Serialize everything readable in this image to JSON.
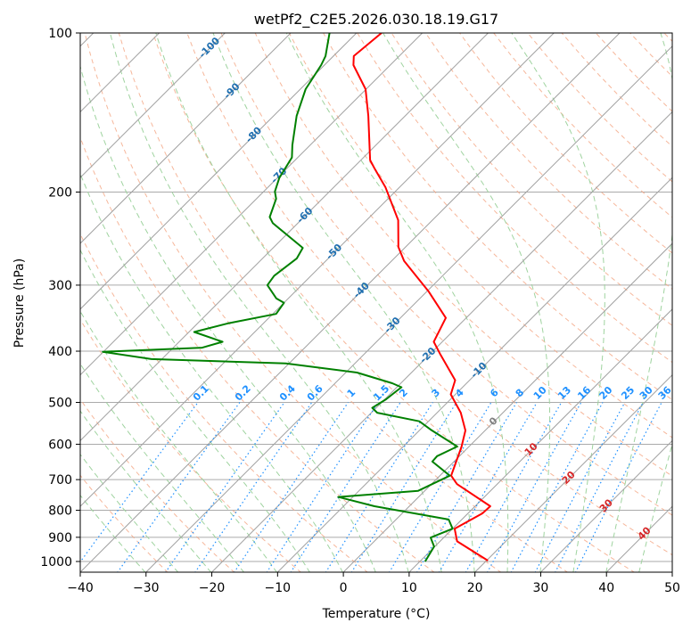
{
  "chart_data": {
    "type": "line",
    "subtype": "skew-t log-p",
    "title": "wetPf2_C2E5.2026.030.18.19.G17",
    "xlabel": "Temperature (°C)",
    "ylabel": "Pressure (hPa)",
    "xlim": [
      -40,
      50
    ],
    "ylim": [
      1048,
      100
    ],
    "x_ticks": [
      "−40",
      "−30",
      "−20",
      "−10",
      "0",
      "10",
      "20",
      "30",
      "40",
      "50"
    ],
    "y_ticks": [
      "100",
      "200",
      "300",
      "400",
      "500",
      "600",
      "700",
      "800",
      "900",
      "1000"
    ],
    "grid": true,
    "isotherm_labels": [
      "-100",
      "-90",
      "-80",
      "-70",
      "-60",
      "-50",
      "-40",
      "-30",
      "-20",
      "-10",
      "0",
      "10",
      "20",
      "30",
      "40"
    ],
    "mixing_ratio_labels": [
      "0.1",
      "0.2",
      "0.4",
      "0.6",
      "1",
      "1.5",
      "2",
      "3",
      "4",
      "6",
      "8",
      "10",
      "13",
      "16",
      "20",
      "25",
      "30",
      "36"
    ],
    "colors": {
      "temperature": "#ff0000",
      "dewpoint": "#008000",
      "isotherm": "#a0a0a0",
      "dry_adiabat": "#f4a582",
      "moist_adiabat": "#9fd39f",
      "mixing_ratio": "#1e90ff",
      "label_cold": "#1f6fb0",
      "label_zero": "#808080",
      "label_warm": "#d62728"
    },
    "series": [
      {
        "name": "Temperature",
        "pressure": [
          996,
          916,
          867,
          811,
          786,
          714,
          688,
          607,
          565,
          523,
          483,
          454,
          404,
          384,
          346,
          308,
          270,
          254,
          226,
          196,
          181,
          174,
          143.5,
          127.7,
          115,
          110.6,
          100
        ],
        "values": [
          20.2,
          12.6,
          10.3,
          12.2,
          12.3,
          3.9,
          1.7,
          -1.1,
          -3.0,
          -6.4,
          -10.7,
          -12.2,
          -18.6,
          -21.3,
          -23.1,
          -29.8,
          -38.1,
          -41.1,
          -45.2,
          -52.1,
          -56.5,
          -58.6,
          -65.6,
          -70.1,
          -75.6,
          -76.9,
          -76.2
        ]
      },
      {
        "name": "Dewpoint",
        "pressure": [
          1000,
          937,
          901,
          867,
          833,
          786,
          755,
          735,
          688,
          647,
          632,
          606,
          563,
          543,
          523,
          512,
          493,
          477,
          468,
          460,
          439,
          422,
          414,
          401,
          394,
          384,
          368,
          354,
          340,
          324,
          318,
          300,
          288,
          267,
          255,
          229,
          223,
          206,
          199.5,
          188,
          172,
          163,
          143.5,
          127.7,
          115,
          110.6,
          100
        ],
        "values": [
          10.8,
          9.9,
          8.0,
          10.0,
          8.0,
          -5.3,
          -12.2,
          -1.0,
          1.5,
          -3.3,
          -3.4,
          -1.8,
          -8.4,
          -11.4,
          -19.1,
          -20.6,
          -19.8,
          -19.5,
          -19.3,
          -21.3,
          -28.3,
          -40.5,
          -61.6,
          -70.1,
          -55.6,
          -53.4,
          -59.2,
          -55.3,
          -49.5,
          -50.0,
          -51.8,
          -55.2,
          -55.6,
          -54.8,
          -55.5,
          -63.8,
          -65.2,
          -67.0,
          -68.3,
          -69.7,
          -70.9,
          -72.7,
          -76.5,
          -79.2,
          -80.5,
          -81.2,
          -84.1
        ]
      }
    ]
  }
}
